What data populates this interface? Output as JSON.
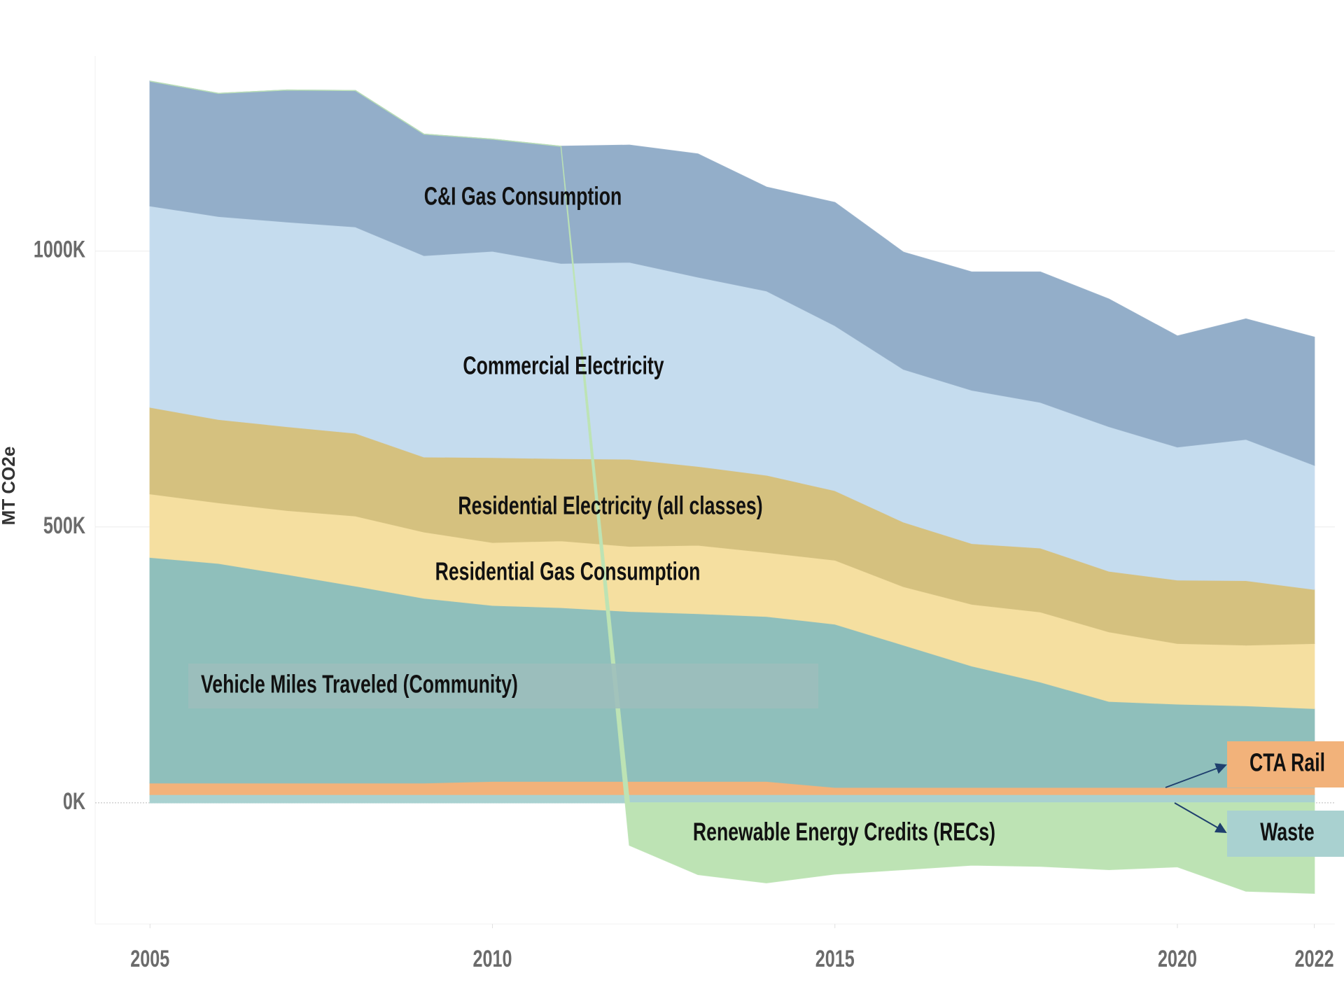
{
  "chart_data": {
    "type": "stacked_area",
    "y_label": "MT CO2e",
    "x": [
      2005,
      2006,
      2007,
      2008,
      2009,
      2010,
      2011,
      2012,
      2013,
      2014,
      2015,
      2016,
      2017,
      2018,
      2019,
      2020,
      2021,
      2022
    ],
    "xlim": [
      2004.2,
      2022.3
    ],
    "xticks": [
      2005,
      2010,
      2015,
      2020,
      2022
    ],
    "ylim": [
      -240000,
      1360000
    ],
    "yticks": [
      {
        "value": 0,
        "label": "0K"
      },
      {
        "value": 500000,
        "label": "500K"
      },
      {
        "value": 1000000,
        "label": "1000K"
      }
    ],
    "grid": true,
    "series": [
      {
        "name": "Waste",
        "color": "#a9d1d0",
        "values": [
          15000,
          15000,
          15000,
          15000,
          15000,
          15000,
          15000,
          15000,
          15000,
          15000,
          15000,
          15000,
          15000,
          15000,
          15000,
          15000,
          15000,
          15000
        ]
      },
      {
        "name": "CTA Rail",
        "color": "#f2b27a",
        "values": [
          21000,
          21000,
          21000,
          21000,
          21000,
          24000,
          24000,
          24000,
          24000,
          24000,
          13000,
          13000,
          13000,
          13000,
          13000,
          13000,
          13000,
          13000
        ]
      },
      {
        "name": "Vehicle Miles Traveled (Community)",
        "color": "#8fbfbb",
        "values": [
          409000,
          398000,
          378000,
          357000,
          335000,
          319000,
          315000,
          308000,
          304000,
          299000,
          296000,
          258000,
          220000,
          191000,
          156000,
          151000,
          148000,
          143000
        ]
      },
      {
        "name": "Residential Gas Consumption",
        "color": "#f5dfa0",
        "values": [
          115000,
          110000,
          116000,
          127000,
          120000,
          114000,
          121000,
          118000,
          124000,
          116000,
          116000,
          106000,
          112000,
          127000,
          126000,
          110000,
          110000,
          118000
        ]
      },
      {
        "name": "Residential Electricity (all classes)",
        "color": "#d5c17f",
        "values": [
          157000,
          151000,
          152000,
          150000,
          136000,
          154000,
          149000,
          158000,
          143000,
          140000,
          126000,
          117000,
          110000,
          116000,
          110000,
          115000,
          117000,
          98000
        ]
      },
      {
        "name": "Commercial Electricity",
        "color": "#c5dcee",
        "values": [
          365000,
          368000,
          371000,
          374000,
          365000,
          374000,
          354000,
          357000,
          343000,
          334000,
          299000,
          277000,
          278000,
          264000,
          262000,
          241000,
          256000,
          225000
        ]
      },
      {
        "name": "C&I Gas Consumption",
        "color": "#93aec9",
        "values": [
          226000,
          223000,
          239000,
          247000,
          220000,
          203000,
          212000,
          212000,
          223000,
          188000,
          223000,
          212000,
          214000,
          236000,
          231000,
          201000,
          218000,
          232000
        ]
      },
      {
        "name": "Renewable Energy Credits (RECs)",
        "color": "#bde3b4",
        "values": [
          0,
          0,
          0,
          0,
          0,
          0,
          0,
          -77000,
          -130000,
          -145000,
          -129000,
          -121000,
          -113000,
          -115000,
          -121000,
          -116000,
          -160000,
          -164000
        ]
      }
    ]
  }
}
